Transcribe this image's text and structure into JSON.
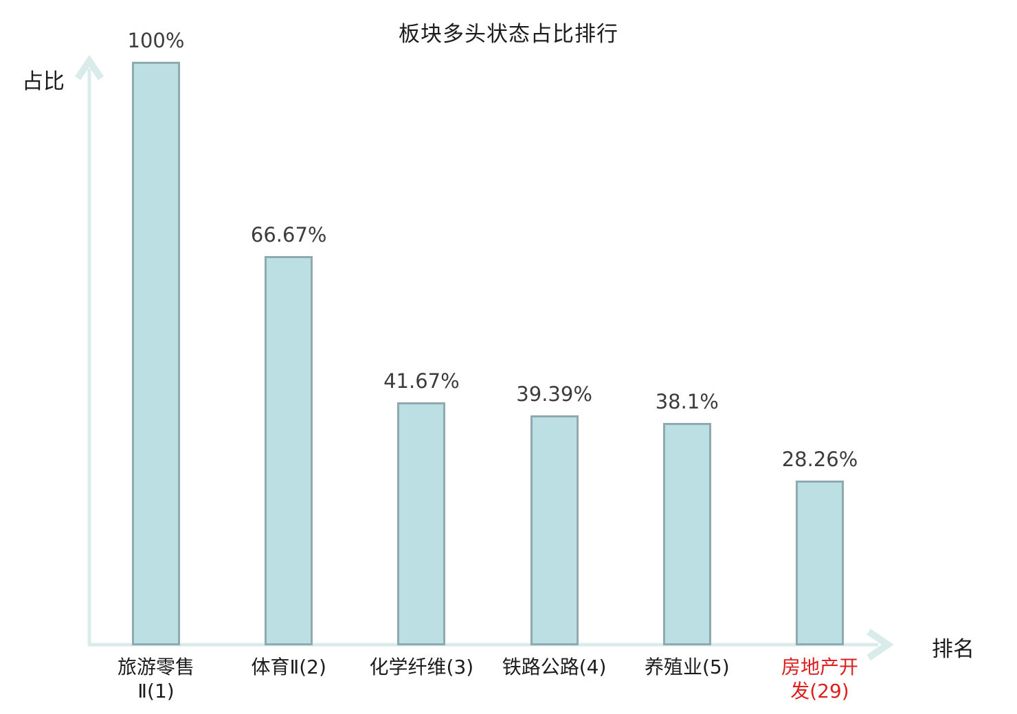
{
  "chart": {
    "title": "板块多头状态占比排行",
    "ylabel": "占比",
    "xlabel": "排名"
  },
  "chart_data": {
    "type": "bar",
    "title": "板块多头状态占比排行",
    "xlabel": "排名",
    "ylabel": "占比",
    "categories": [
      "旅游零售Ⅱ(1)",
      "体育Ⅱ(2)",
      "化学纤维(3)",
      "铁路公路(4)",
      "养殖业(5)",
      "房地产开发(29)"
    ],
    "values": [
      100,
      66.67,
      41.67,
      39.39,
      38.1,
      28.26
    ],
    "value_labels": [
      "100%",
      "66.67%",
      "41.67%",
      "39.39%",
      "38.1%",
      "28.26%"
    ],
    "category_display": [
      "旅游零售\nⅡ(1)",
      "体育Ⅱ(2)",
      "化学纤维(3)",
      "铁路公路(4)",
      "养殖业(5)",
      "房地产开\n发(29)"
    ],
    "category_colors": [
      "#1c1c1c",
      "#1c1c1c",
      "#1c1c1c",
      "#1c1c1c",
      "#1c1c1c",
      "#dd1f1f"
    ],
    "highlight_index": 5,
    "highlight_color": "#dd1f1f",
    "ylim": [
      0,
      100
    ],
    "grid": false,
    "legend": null,
    "bar_color": "#bcdfe3",
    "bar_border_color": "#8fa9b0",
    "axis_color": "#d9ece9"
  }
}
